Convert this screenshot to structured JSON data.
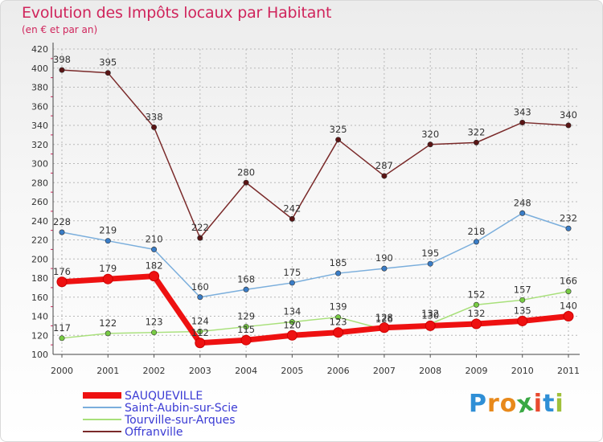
{
  "title": "Evolution des Impôts locaux par Habitant",
  "subtitle": "(en € et par an)",
  "brand": {
    "letters": [
      "P",
      "r",
      "o",
      "x",
      "i",
      "t",
      "i"
    ],
    "colors": [
      "#2f8fd6",
      "#e8891b",
      "#e8891b",
      "#3aa844",
      "#e84a2f",
      "#2f8fd6",
      "#a0c03a"
    ]
  },
  "chart_data": {
    "type": "line",
    "title": "Evolution des Impôts locaux par Habitant",
    "subtitle": "(en € et par an)",
    "xlabel": "",
    "ylabel": "",
    "x": [
      "2000",
      "2001",
      "2002",
      "2003",
      "2004",
      "2005",
      "2006",
      "2007",
      "2008",
      "2009",
      "2010",
      "2011"
    ],
    "ylim": [
      100,
      420
    ],
    "yticks": [
      "100",
      "120",
      "140",
      "160",
      "180",
      "200",
      "220",
      "240",
      "260",
      "280",
      "300",
      "320",
      "340",
      "360",
      "380",
      "400",
      "420"
    ],
    "grid": true,
    "legend_position": "bottom-left",
    "series": [
      {
        "name": "SAUQUEVILLE",
        "color": "#ee1111",
        "marker": "#ee1111",
        "emphasis": true,
        "values": [
          176,
          179,
          182,
          112,
          115,
          120,
          123,
          128,
          130,
          132,
          135,
          140
        ],
        "labels": [
          "176",
          "179",
          "182",
          "112",
          "115",
          "120",
          "123",
          "128",
          "130",
          "132",
          "135",
          "140"
        ]
      },
      {
        "name": "Saint-Aubin-sur-Scie",
        "color": "#7aaedc",
        "marker": "#3a7dc7",
        "emphasis": false,
        "values": [
          228,
          219,
          210,
          160,
          168,
          175,
          185,
          190,
          195,
          218,
          248,
          232
        ],
        "labels": [
          "228",
          "219",
          "210",
          "160",
          "168",
          "175",
          "185",
          "190",
          "195",
          "218",
          "248",
          "232"
        ]
      },
      {
        "name": "Tourville-sur-Arques",
        "color": "#a8e07a",
        "marker": "#78cc44",
        "emphasis": false,
        "values": [
          117,
          122,
          123,
          124,
          129,
          134,
          139,
          126,
          132,
          152,
          157,
          166
        ],
        "labels": [
          "117",
          "122",
          "123",
          "124",
          "129",
          "134",
          "139",
          "126",
          "132",
          "152",
          "157",
          "166"
        ]
      },
      {
        "name": "Offranville",
        "color": "#7a2a2a",
        "marker": "#5a1515",
        "emphasis": false,
        "values": [
          398,
          395,
          338,
          222,
          280,
          242,
          325,
          287,
          320,
          322,
          343,
          340
        ],
        "labels": [
          "398",
          "395",
          "338",
          "222",
          "280",
          "242",
          "325",
          "287",
          "320",
          "322",
          "343",
          "340"
        ]
      }
    ]
  }
}
